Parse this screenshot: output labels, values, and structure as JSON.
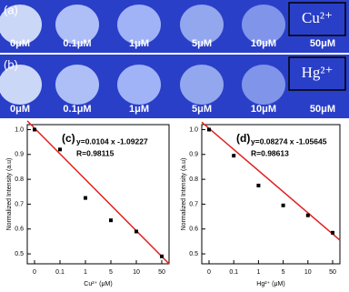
{
  "panels": [
    {
      "label": "(a)",
      "ion": "Cu²⁺",
      "concentrations": [
        "0μM",
        "0.1μM",
        "1μM",
        "5μM",
        "10μM",
        "50μM"
      ]
    },
    {
      "label": "(b)",
      "ion": "Hg²⁺",
      "concentrations": [
        "0μM",
        "0.1μM",
        "1μM",
        "5μM",
        "10μM",
        "50μM"
      ]
    }
  ],
  "chart_data": [
    {
      "type": "scatter",
      "panel": "(c)",
      "x_label": "Cu²⁺ (μM)",
      "y_label": "Normalized Intensity (a.u)",
      "annotations": [
        "y=0.0104 x -1.09227",
        "R=0.98115"
      ],
      "categories": [
        "0",
        "0.1",
        "1",
        "5",
        "10",
        "50"
      ],
      "values": [
        1.0,
        0.92,
        0.725,
        0.635,
        0.59,
        0.49
      ],
      "fit_values": [
        1.035,
        0.46
      ],
      "color": "#000000",
      "fit_color": "#e02020",
      "ylim": [
        0.46,
        1.02
      ],
      "yticks": [
        {
          "value": 0.5,
          "label": "0.5"
        },
        {
          "value": 0.6,
          "label": "0.6"
        },
        {
          "value": 0.7,
          "label": "0.7"
        },
        {
          "value": 0.8,
          "label": "0.8"
        },
        {
          "value": 0.9,
          "label": "0.9"
        },
        {
          "value": 1.0,
          "label": "1.0"
        }
      ]
    },
    {
      "type": "scatter",
      "panel": "(d)",
      "x_label": "Hg²⁺ (μM)",
      "y_label": "Normalized Intensity (a.u)",
      "annotations": [
        "y=0.08274 x -1.05645",
        "R=0.98613"
      ],
      "categories": [
        "0",
        "0.1",
        "1",
        "5",
        "10",
        "50"
      ],
      "values": [
        1.0,
        0.895,
        0.775,
        0.695,
        0.655,
        0.585
      ],
      "fit_values": [
        1.03,
        0.555
      ],
      "color": "#000000",
      "fit_color": "#e02020",
      "ylim": [
        0.46,
        1.02
      ],
      "yticks": [
        {
          "value": 0.5,
          "label": "0.5"
        },
        {
          "value": 0.6,
          "label": "0.6"
        },
        {
          "value": 0.7,
          "label": "0.7"
        },
        {
          "value": 0.8,
          "label": "0.8"
        },
        {
          "value": 0.9,
          "label": "0.9"
        },
        {
          "value": 1.0,
          "label": "1.0"
        }
      ]
    }
  ]
}
